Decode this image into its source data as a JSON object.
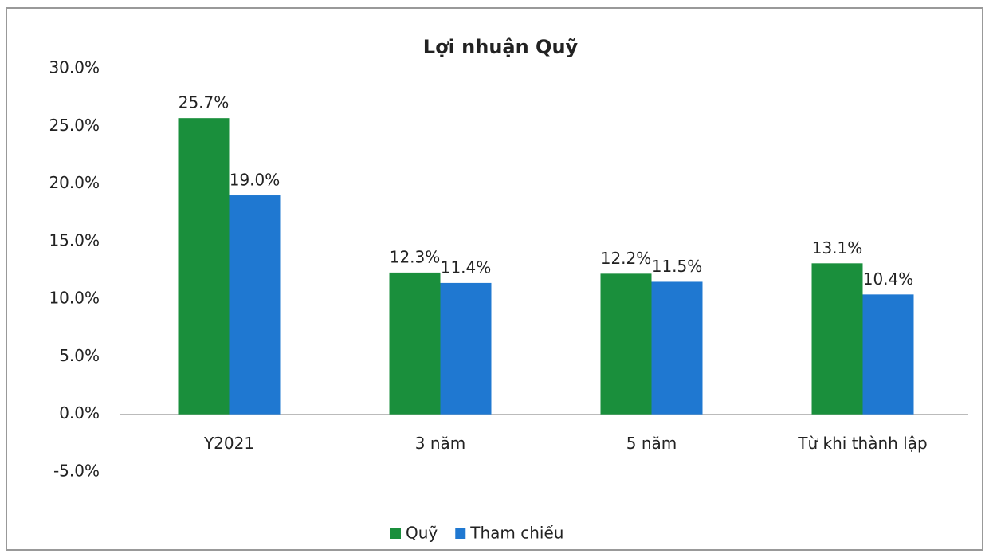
{
  "chart_data": {
    "type": "bar",
    "title": "Lợi nhuận Quỹ",
    "categories": [
      "Y2021",
      "3 năm",
      "5 năm",
      "Từ khi thành lập"
    ],
    "series": [
      {
        "name": "Quỹ",
        "color": "#1a8f3c",
        "values": [
          25.7,
          12.3,
          12.2,
          13.1
        ],
        "value_labels": [
          "25.7%",
          "12.3%",
          "12.2%",
          "13.1%"
        ]
      },
      {
        "name": "Tham chiếu",
        "color": "#1f78d1",
        "values": [
          19.0,
          11.4,
          11.5,
          10.4
        ],
        "value_labels": [
          "19.0%",
          "11.4%",
          "11.5%",
          "10.4%"
        ]
      }
    ],
    "ylim": [
      -5,
      30
    ],
    "yticks": [
      {
        "value": -5,
        "label": "-5.0%"
      },
      {
        "value": 0,
        "label": "0.0%"
      },
      {
        "value": 5,
        "label": "5.0%"
      },
      {
        "value": 10,
        "label": "10.0%"
      },
      {
        "value": 15,
        "label": "15.0%"
      },
      {
        "value": 20,
        "label": "20.0%"
      },
      {
        "value": 25,
        "label": "25.0%"
      },
      {
        "value": 30,
        "label": "30.0%"
      }
    ],
    "grid": false,
    "legend": "bottom"
  }
}
